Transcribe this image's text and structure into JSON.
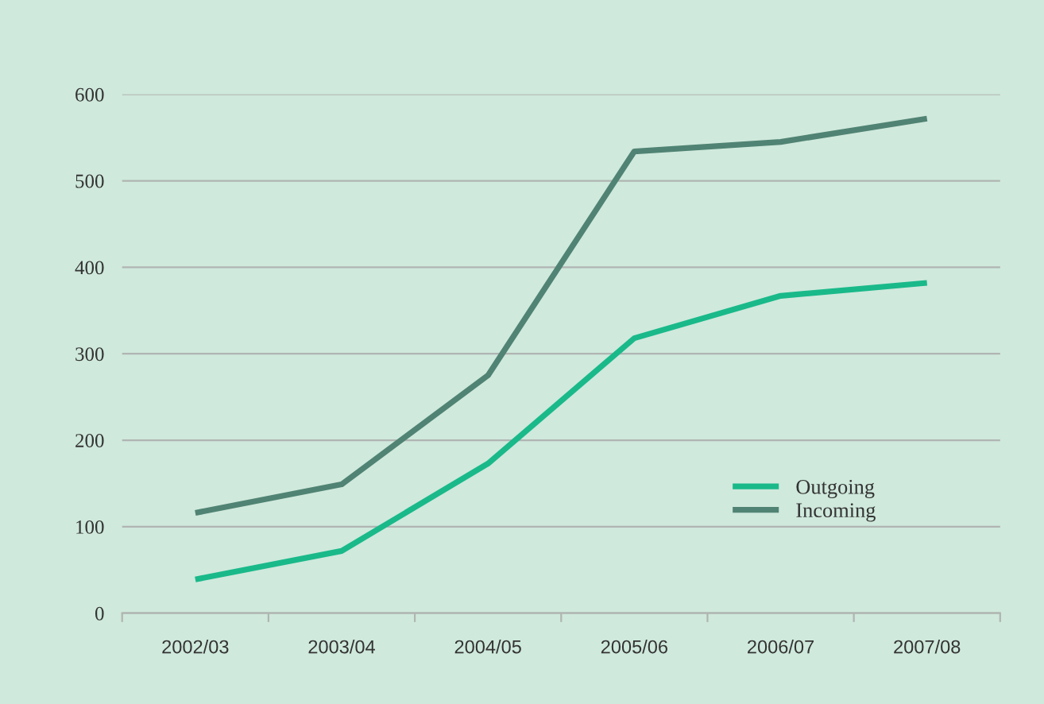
{
  "chart_data": {
    "type": "line",
    "categories": [
      "2002/03",
      "2003/04",
      "2004/05",
      "2005/06",
      "2006/07",
      "2007/08"
    ],
    "series": [
      {
        "name": "Outgoing",
        "color": "#1ab98a",
        "values": [
          39,
          72,
          173,
          318,
          367,
          382
        ]
      },
      {
        "name": "Incoming",
        "color": "#508373",
        "values": [
          116,
          149,
          275,
          534,
          545,
          572
        ]
      }
    ],
    "ylim": [
      0,
      600
    ],
    "yticks": [
      0,
      100,
      200,
      300,
      400,
      500,
      600
    ],
    "grid": "y",
    "legend": "lower right",
    "marker": "none",
    "line_style": "solid"
  }
}
